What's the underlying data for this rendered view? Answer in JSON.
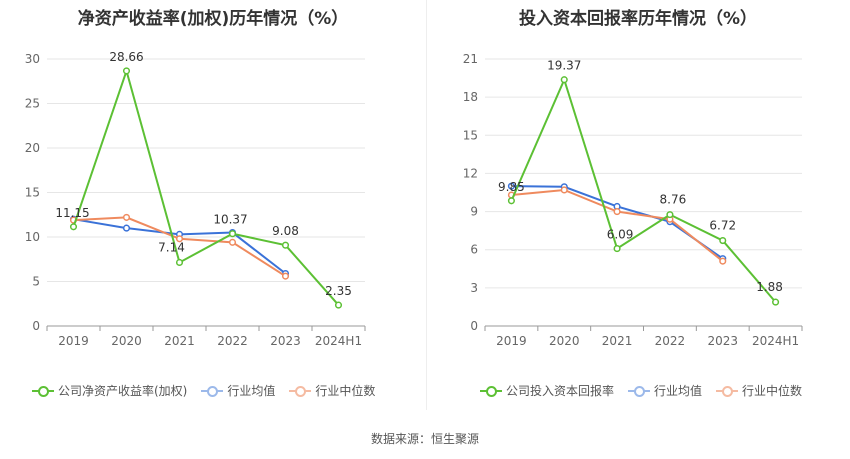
{
  "source": "数据来源：恒生聚源",
  "colors": {
    "company": "#5cc034",
    "avg": "#3a72d8",
    "median": "#ef8a5e",
    "grid": "#e6e6e6",
    "axis": "#999999",
    "tick": "#666666"
  },
  "chart_data": [
    {
      "type": "line",
      "title": "净资产收益率(加权)历年情况（%）",
      "categories": [
        "2019",
        "2020",
        "2021",
        "2022",
        "2023",
        "2024H1"
      ],
      "ylim": [
        0,
        30
      ],
      "yticks": [
        0,
        5,
        10,
        15,
        20,
        25,
        30
      ],
      "series": [
        {
          "name": "公司净资产收益率(加权)",
          "key": "company",
          "values": [
            11.15,
            28.66,
            7.14,
            10.37,
            9.08,
            2.35
          ],
          "labels": [
            "11.15",
            "28.66",
            "7.14",
            "10.37",
            "9.08",
            "2.35"
          ]
        },
        {
          "name": "行业均值",
          "key": "avg",
          "values": [
            12.0,
            11.0,
            10.3,
            10.5,
            5.9,
            null
          ]
        },
        {
          "name": "行业中位数",
          "key": "median",
          "values": [
            11.9,
            12.2,
            9.8,
            9.4,
            5.6,
            null
          ]
        }
      ]
    },
    {
      "type": "line",
      "title": "投入资本回报率历年情况（%）",
      "categories": [
        "2019",
        "2020",
        "2021",
        "2022",
        "2023",
        "2024H1"
      ],
      "ylim": [
        0,
        21
      ],
      "yticks": [
        0,
        3,
        6,
        9,
        12,
        15,
        18,
        21
      ],
      "series": [
        {
          "name": "公司投入资本回报率",
          "key": "company",
          "values": [
            9.85,
            19.37,
            6.09,
            8.76,
            6.72,
            1.88
          ],
          "labels": [
            "9.85",
            "19.37",
            "6.09",
            "8.76",
            "6.72",
            "1.88"
          ]
        },
        {
          "name": "行业均值",
          "key": "avg",
          "values": [
            11.0,
            10.95,
            9.4,
            8.2,
            5.3,
            null
          ]
        },
        {
          "name": "行业中位数",
          "key": "median",
          "values": [
            10.3,
            10.7,
            9.0,
            8.4,
            5.1,
            null
          ]
        }
      ]
    }
  ]
}
